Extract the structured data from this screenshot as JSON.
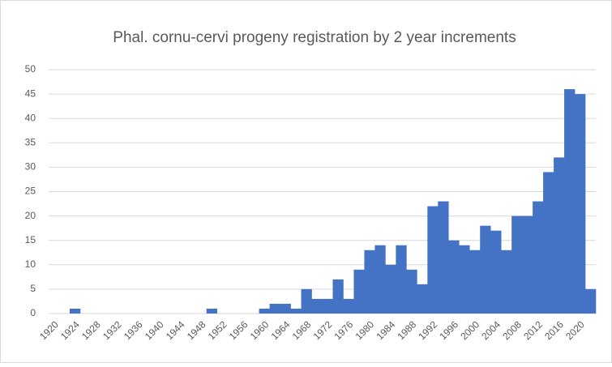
{
  "chart_data": {
    "type": "bar",
    "title": "Phal. cornu-cervi progeny registration by 2 year increments",
    "categories": [
      "1920",
      null,
      "1924",
      null,
      "1928",
      null,
      "1932",
      null,
      "1936",
      null,
      "1940",
      null,
      "1944",
      null,
      "1948",
      null,
      "1952",
      null,
      "1956",
      null,
      "1960",
      null,
      "1964",
      null,
      "1968",
      null,
      "1972",
      null,
      "1976",
      null,
      "1980",
      null,
      "1984",
      null,
      "1988",
      null,
      "1992",
      null,
      "1996",
      null,
      "2000",
      null,
      "2004",
      null,
      "2008",
      null,
      "2012",
      null,
      "2016",
      null,
      "2020",
      null
    ],
    "values": [
      0,
      0,
      1,
      0,
      0,
      0,
      0,
      0,
      0,
      0,
      0,
      0,
      0,
      0,
      0,
      1,
      0,
      0,
      0,
      0,
      1,
      2,
      2,
      1,
      5,
      3,
      3,
      7,
      3,
      9,
      13,
      14,
      10,
      14,
      9,
      6,
      22,
      23,
      15,
      14,
      13,
      18,
      17,
      13,
      20,
      20,
      23,
      29,
      32,
      46,
      45,
      5
    ],
    "color": "#4472c4",
    "ylim": [
      0,
      50
    ],
    "yticks": [
      0,
      5,
      10,
      15,
      20,
      25,
      30,
      35,
      40,
      45,
      50
    ],
    "grid": true
  }
}
